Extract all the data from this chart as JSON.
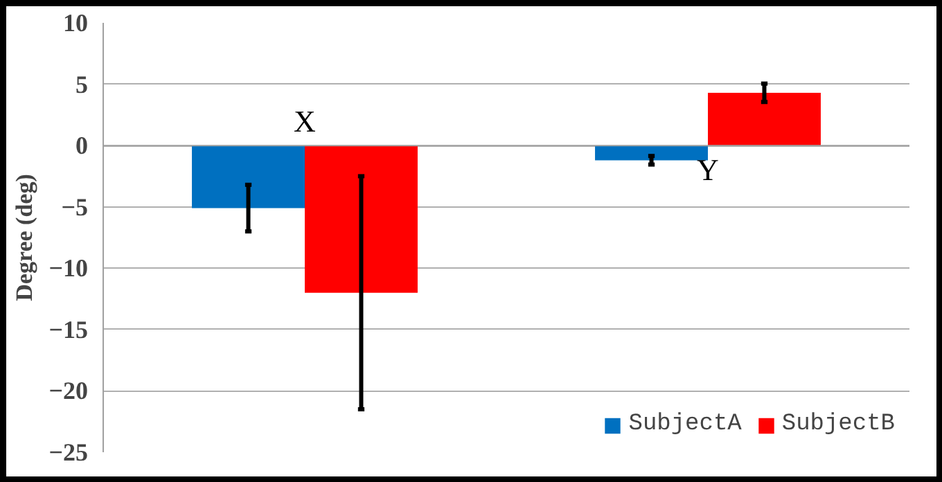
{
  "chart_data": {
    "type": "bar",
    "ylabel": "Degree (deg)",
    "categories": [
      "X",
      "Y"
    ],
    "series": [
      {
        "name": "SubjectA",
        "color": "#0070c0",
        "values": [
          -5.1,
          -1.2
        ],
        "errors": [
          1.9,
          0.35
        ]
      },
      {
        "name": "SubjectB",
        "color": "#ff0000",
        "values": [
          -12.0,
          4.3
        ],
        "errors": [
          9.5,
          0.75
        ]
      }
    ],
    "ylim": [
      -25,
      10
    ],
    "yticks": [
      -25,
      -20,
      -15,
      -10,
      -5,
      0,
      5,
      10
    ],
    "grid": "y",
    "legend": "bottom right"
  }
}
